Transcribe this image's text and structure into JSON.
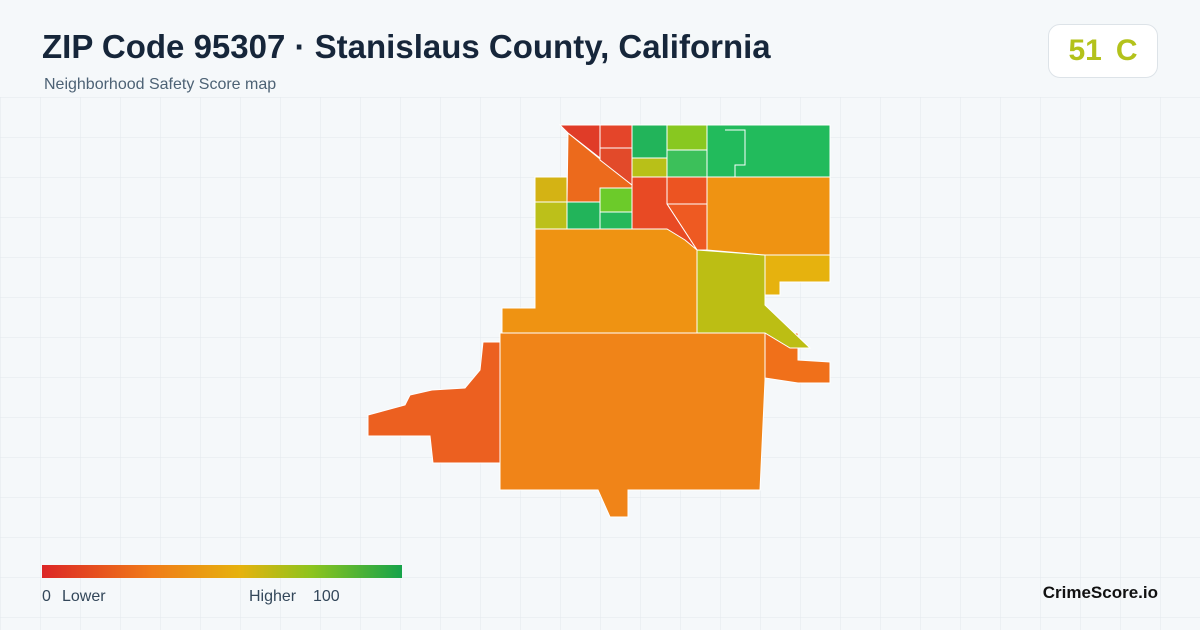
{
  "header": {
    "title": "ZIP Code 95307 · Stanislaus County, California",
    "subtitle": "Neighborhood Safety Score map"
  },
  "score": {
    "value": "51",
    "grade": "C"
  },
  "legend": {
    "min": "0",
    "min_label": "Lower",
    "max_label": "Higher",
    "max": "100"
  },
  "brand": "CrimeScore.io"
}
